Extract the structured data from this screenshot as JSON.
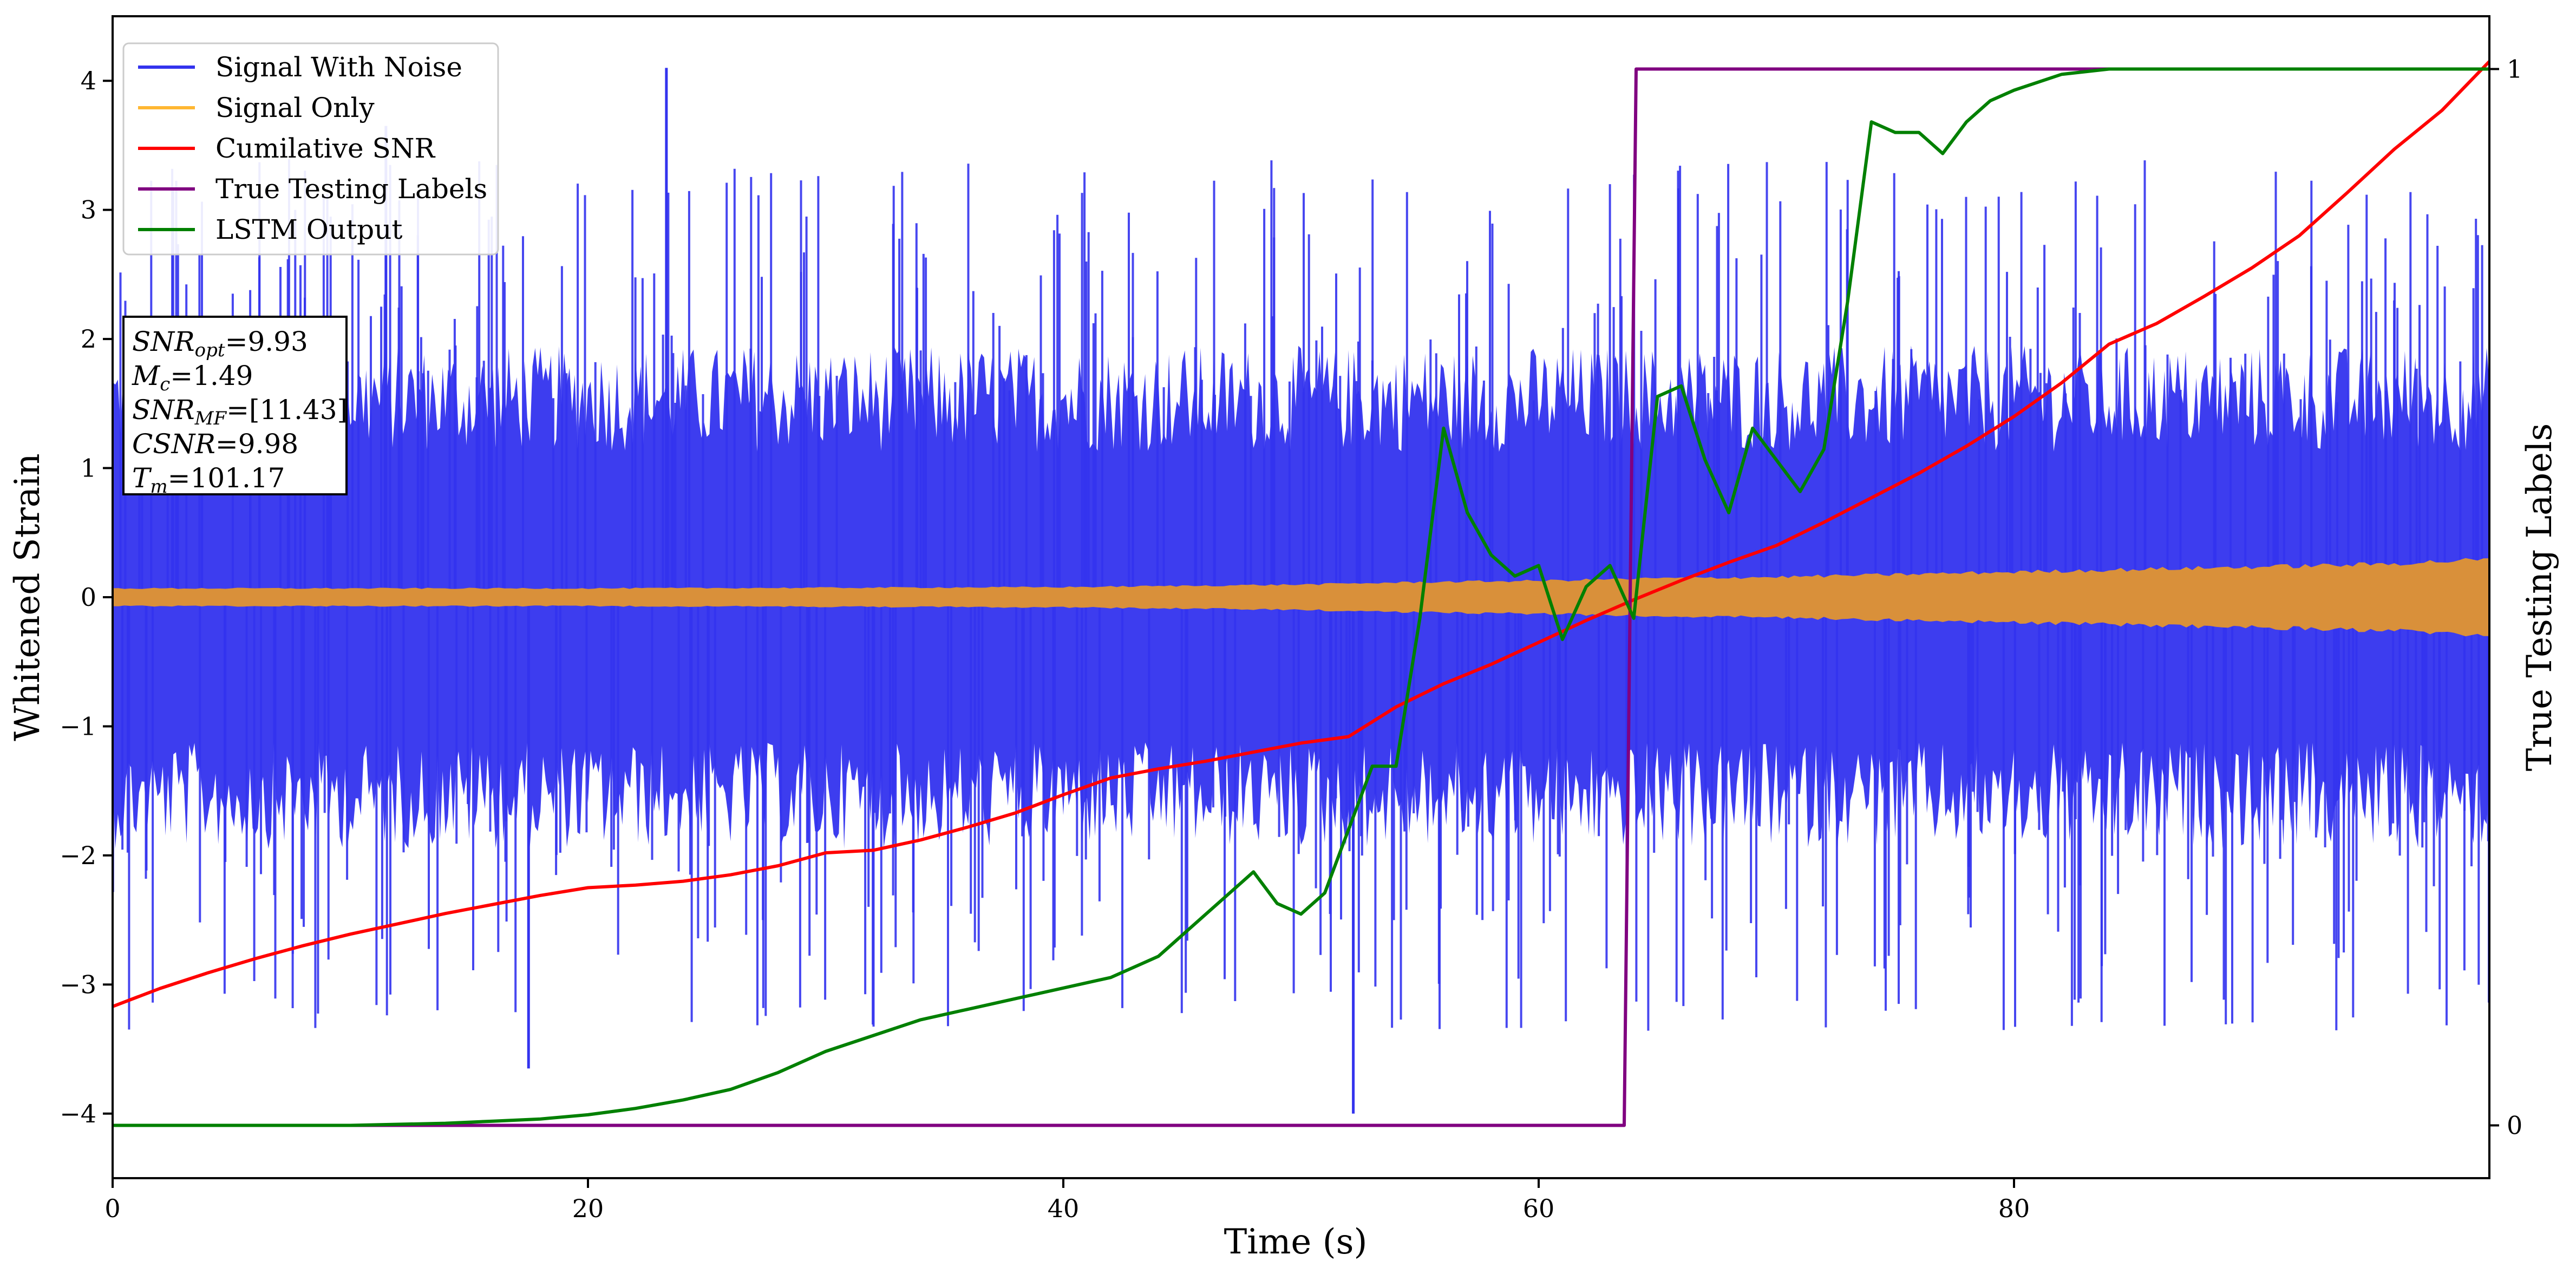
{
  "chart_data": {
    "type": "line",
    "xlabel": "Time (s)",
    "ylabel": "Whitened Strain",
    "ylabel_right": "True Testing Labels",
    "xlim": [
      0,
      100
    ],
    "ylim": [
      -4.5,
      4.5
    ],
    "ylim_right": [
      -0.05,
      1.05
    ],
    "xticks": [
      0,
      20,
      40,
      60,
      80
    ],
    "yticks": [
      -4,
      -3,
      -2,
      -1,
      0,
      1,
      2,
      3,
      4
    ],
    "yticks_right": [
      0,
      1
    ],
    "grid": false,
    "legend_position": "top-left",
    "legend": [
      {
        "label": "Signal With Noise",
        "color": "#3333ee"
      },
      {
        "label": "Signal Only",
        "color": "#ffb732"
      },
      {
        "label": "Cumilative SNR",
        "color": "#ff0000"
      },
      {
        "label": "True Testing Labels",
        "color": "#800080"
      },
      {
        "label": "LSTM Output",
        "color": "#008000"
      }
    ],
    "annotation": [
      {
        "base": "SNR",
        "sub": "opt",
        "value": "=9.93"
      },
      {
        "base": "M",
        "sub": "c",
        "value": "=1.49"
      },
      {
        "base": "SNR",
        "sub": "MF",
        "value": "=[11.43]"
      },
      {
        "base": "CSNR",
        "sub": "",
        "value": "=9.98"
      },
      {
        "base": "T",
        "sub": "m",
        "value": "=101.17"
      }
    ],
    "series": [
      {
        "name": "Cumilative SNR",
        "color": "#ff0000",
        "axis": "left",
        "x": [
          0,
          2,
          4,
          6,
          8,
          10,
          12,
          14,
          16,
          18,
          20,
          22,
          24,
          26,
          28,
          30,
          32,
          34,
          36,
          38,
          40,
          42,
          44,
          46,
          48,
          50,
          52,
          54,
          56,
          58,
          60,
          62,
          64,
          66,
          68,
          70,
          72,
          74,
          76,
          78,
          80,
          82,
          84,
          86,
          88,
          90,
          92,
          94,
          96,
          98,
          100
        ],
        "y": [
          -3.17,
          -3.03,
          -2.91,
          -2.8,
          -2.7,
          -2.61,
          -2.53,
          -2.45,
          -2.38,
          -2.31,
          -2.25,
          -2.23,
          -2.2,
          -2.15,
          -2.08,
          -1.98,
          -1.96,
          -1.88,
          -1.78,
          -1.67,
          -1.53,
          -1.4,
          -1.33,
          -1.27,
          -1.2,
          -1.13,
          -1.08,
          -0.85,
          -0.67,
          -0.52,
          -0.35,
          -0.18,
          -0.02,
          0.13,
          0.27,
          0.4,
          0.58,
          0.77,
          0.96,
          1.17,
          1.4,
          1.66,
          1.96,
          2.12,
          2.33,
          2.55,
          2.8,
          3.13,
          3.47,
          3.77,
          4.15
        ]
      },
      {
        "name": "True Testing Labels",
        "color": "#800080",
        "axis": "right",
        "x": [
          0,
          63.6,
          64.1,
          100
        ],
        "y": [
          0,
          0,
          1,
          1
        ]
      },
      {
        "name": "LSTM Output",
        "color": "#008000",
        "axis": "right",
        "x": [
          0,
          10,
          14,
          16,
          18,
          20,
          22,
          24,
          26,
          28,
          30,
          32,
          34,
          36,
          38,
          40,
          42,
          44,
          45,
          46,
          47,
          48,
          49,
          50,
          51,
          52,
          53,
          54,
          55,
          56,
          57,
          58,
          59,
          60,
          61,
          62,
          63,
          64,
          65,
          66,
          67,
          68,
          69,
          70,
          71,
          72,
          73,
          74,
          75,
          76,
          77,
          78,
          79,
          80,
          82,
          84,
          86,
          90,
          95,
          100
        ],
        "y": [
          0,
          0,
          0.002,
          0.004,
          0.006,
          0.01,
          0.016,
          0.024,
          0.034,
          0.05,
          0.07,
          0.085,
          0.1,
          0.11,
          0.12,
          0.13,
          0.14,
          0.16,
          0.18,
          0.2,
          0.22,
          0.24,
          0.21,
          0.2,
          0.22,
          0.28,
          0.34,
          0.34,
          0.48,
          0.66,
          0.58,
          0.54,
          0.52,
          0.53,
          0.46,
          0.51,
          0.53,
          0.48,
          0.69,
          0.7,
          0.63,
          0.58,
          0.66,
          0.63,
          0.6,
          0.64,
          0.78,
          0.95,
          0.94,
          0.94,
          0.92,
          0.95,
          0.97,
          0.98,
          0.995,
          1.0,
          1.0,
          1.0,
          1.0,
          1.0
        ]
      }
    ],
    "noise_band": {
      "name": "Signal With Noise",
      "color": "#3333ee",
      "typical_amplitude": 1.5,
      "max_value": 4.1,
      "min_value": -4.0
    },
    "signal_band": {
      "name": "Signal Only",
      "color": "#d9903a",
      "envelope_x": [
        0,
        20,
        40,
        50,
        55,
        60,
        65,
        70,
        75,
        80,
        85,
        90,
        95,
        100
      ],
      "envelope_amplitude": [
        0.07,
        0.07,
        0.08,
        0.1,
        0.12,
        0.13,
        0.15,
        0.16,
        0.18,
        0.2,
        0.22,
        0.24,
        0.26,
        0.3
      ]
    }
  }
}
